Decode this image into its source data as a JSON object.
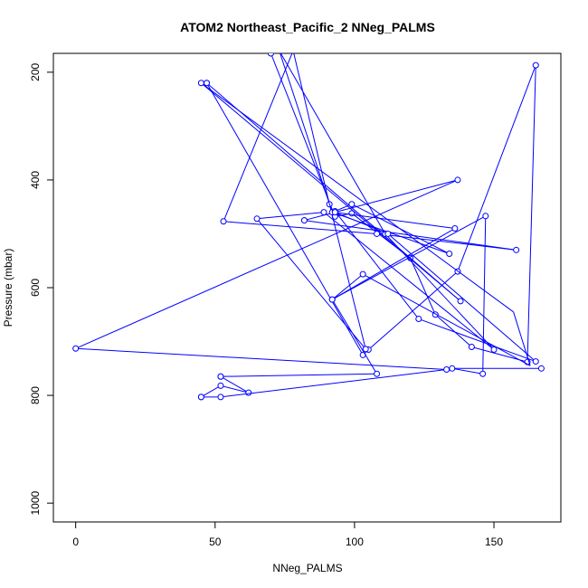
{
  "chart_data": {
    "type": "line",
    "title": "ATOM2 Northeast_Pacific_2 NNeg_PALMS",
    "xlabel": "NNeg_PALMS",
    "ylabel": "Pressure (mbar)",
    "xlim": [
      -8,
      174
    ],
    "ylim": [
      1035,
      165
    ],
    "y_reversed": true,
    "x_ticks": [
      0,
      50,
      100,
      150
    ],
    "y_ticks": [
      200,
      400,
      600,
      800,
      1000
    ],
    "grid": false,
    "color": "#0000ff",
    "series": [
      {
        "x": [
          70,
          93,
          99,
          120,
          129,
          142,
          162,
          165,
          137,
          105,
          103,
          47
        ],
        "y": [
          165,
          468,
          462,
          545,
          650,
          710,
          738,
          187,
          570,
          715,
          725,
          220
        ],
        "markers": true,
        "segment_clip_top": true
      },
      {
        "x": [
          47,
          138,
          45,
          157,
          163,
          103,
          92,
          108,
          52
        ],
        "y": [
          220,
          625,
          220,
          645,
          745,
          575,
          622,
          760,
          765
        ],
        "markers": [
          true,
          true,
          true,
          false,
          false,
          true,
          true,
          true,
          true
        ]
      },
      {
        "x": [
          52,
          62,
          52,
          45
        ],
        "y": [
          765,
          795,
          782,
          803
        ],
        "markers": true
      },
      {
        "x": [
          45,
          52,
          133,
          0,
          137,
          82
        ],
        "y": [
          803,
          803,
          752,
          713,
          400,
          475
        ],
        "markers": true
      },
      {
        "x": [
          82,
          158,
          108,
          53,
          78,
          91,
          104,
          65,
          89,
          150,
          111,
          73
        ],
        "y": [
          475,
          530,
          500,
          477,
          160,
          445,
          714,
          472,
          460,
          715,
          500,
          160
        ],
        "markers": true
      },
      {
        "x": [
          73,
          92,
          134,
          99,
          93,
          123,
          165,
          112,
          93,
          136,
          92,
          147,
          146,
          135,
          167
        ],
        "y": [
          160,
          460,
          537,
          445,
          458,
          658,
          737,
          500,
          460,
          490,
          622,
          467,
          760,
          750,
          750
        ],
        "markers": true
      }
    ]
  }
}
